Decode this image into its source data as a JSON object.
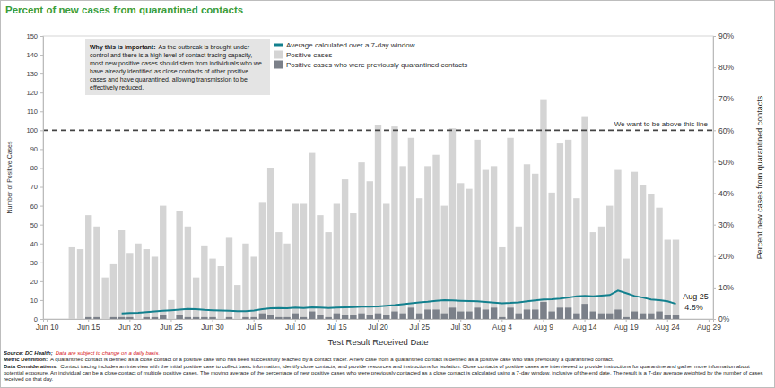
{
  "chart_data": {
    "type": "bar",
    "title": "Percent of new cases from quarantined contacts",
    "x_label": "Test Result Received Date",
    "y_label": "Number of Positive Cases",
    "y2_label": "Percent new cases from quarantined contacts",
    "categories": [
      "Jun 10",
      null,
      null,
      null,
      null,
      "Jun 15",
      null,
      null,
      null,
      null,
      "Jun 20",
      null,
      null,
      null,
      null,
      "Jun 25",
      null,
      null,
      null,
      null,
      "Jun 30",
      null,
      null,
      null,
      null,
      "Jul 5",
      null,
      null,
      null,
      null,
      "Jul 10",
      null,
      null,
      null,
      null,
      "Jul 15",
      null,
      null,
      null,
      null,
      "Jul 20",
      null,
      null,
      null,
      null,
      "Jul 25",
      null,
      null,
      null,
      null,
      "Jul 30",
      null,
      null,
      null,
      null,
      "Aug 4",
      null,
      null,
      null,
      null,
      "Aug 9",
      null,
      null,
      null,
      null,
      "Aug 14",
      null,
      null,
      null,
      null,
      "Aug 19",
      null,
      null,
      null,
      null,
      "Aug 24",
      null,
      null,
      null,
      null,
      "Aug 29"
    ],
    "series": [
      {
        "name": "Average calculated over a 7-day window",
        "type": "line",
        "axis": "y2",
        "color": "#12808e",
        "values": [
          null,
          null,
          null,
          null,
          null,
          null,
          null,
          null,
          null,
          1.8,
          1.9,
          2.0,
          2.2,
          2.4,
          2.6,
          2.8,
          3.0,
          3.2,
          3.1,
          2.9,
          2.8,
          2.7,
          2.6,
          2.5,
          2.5,
          2.7,
          3.1,
          3.4,
          3.5,
          3.4,
          3.6,
          3.5,
          3.7,
          3.6,
          3.5,
          3.6,
          3.7,
          3.8,
          3.9,
          3.9,
          4.0,
          4.2,
          4.4,
          4.7,
          5.0,
          5.3,
          5.5,
          5.8,
          6.0,
          5.9,
          5.8,
          5.7,
          5.6,
          5.4,
          5.2,
          5.0,
          5.1,
          5.3,
          5.6,
          5.9,
          6.2,
          6.3,
          6.5,
          6.8,
          7.2,
          7.3,
          7.2,
          7.4,
          7.6,
          9.0,
          8.2,
          7.3,
          6.8,
          6.2,
          6.0,
          5.6,
          4.8,
          null,
          null,
          null,
          null
        ]
      },
      {
        "name": "Positive cases",
        "type": "bar",
        "color": "#d4d4d4",
        "values": [
          null,
          null,
          null,
          38,
          37,
          55,
          49,
          22,
          29,
          47,
          35,
          40,
          37,
          33,
          60,
          10,
          57,
          49,
          22,
          39,
          32,
          28,
          43,
          18,
          40,
          33,
          62,
          80,
          46,
          40,
          61,
          61,
          88,
          55,
          46,
          61,
          74,
          56,
          83,
          73,
          103,
          61,
          102,
          81,
          96,
          64,
          81,
          87,
          60,
          101,
          72,
          69,
          95,
          79,
          81,
          38,
          96,
          49,
          82,
          77,
          116,
          67,
          93,
          95,
          64,
          107,
          46,
          49,
          60,
          79,
          32,
          78,
          71,
          66,
          59,
          42,
          42,
          null,
          null,
          null,
          null
        ]
      },
      {
        "name": "Positive cases who were previously quarantined contacts",
        "type": "bar",
        "color": "#7b8089",
        "values": [
          null,
          null,
          null,
          0,
          0,
          1,
          1,
          0,
          1,
          1,
          1,
          0,
          1,
          1,
          2,
          0,
          2,
          1,
          1,
          1,
          1,
          0,
          1,
          0,
          1,
          1,
          3,
          2,
          1,
          1,
          3,
          1,
          4,
          2,
          1,
          3,
          2,
          2,
          3,
          2,
          3,
          2,
          4,
          3,
          6,
          3,
          5,
          5,
          3,
          6,
          4,
          4,
          6,
          5,
          6,
          1,
          6,
          3,
          5,
          5,
          9,
          4,
          6,
          6,
          3,
          8,
          4,
          3,
          3,
          5,
          1,
          4,
          3,
          3,
          4,
          2,
          2,
          null,
          null,
          null,
          null
        ]
      }
    ],
    "ylim": [
      0,
      150
    ],
    "yticks": [
      0,
      10,
      20,
      30,
      40,
      50,
      60,
      70,
      80,
      90,
      100,
      110,
      120,
      130,
      140,
      150
    ],
    "y2lim": [
      0,
      90
    ],
    "y2ticks": [
      {
        "value": 0,
        "label": "0%"
      },
      {
        "value": 10,
        "label": "10%"
      },
      {
        "value": 20,
        "label": "20%"
      },
      {
        "value": 30,
        "label": "30%"
      },
      {
        "value": 40,
        "label": "40%"
      },
      {
        "value": 50,
        "label": "50%"
      },
      {
        "value": 60,
        "label": "60%"
      },
      {
        "value": 70,
        "label": "70%"
      },
      {
        "value": 80,
        "label": "80%"
      },
      {
        "value": 90,
        "label": "90%"
      }
    ],
    "grid": false,
    "legend": "top",
    "reference_line": {
      "value": 60,
      "axis": "y2",
      "label": "We want to be above this line",
      "line_style": "dashed"
    },
    "annotations": [
      {
        "text": "Aug 25",
        "label": "4.8%",
        "value": 4.8
      }
    ],
    "note": {
      "heading": "Why this is important:",
      "text": "As the outbreak is brought under control and there is a high level of contact tracing capacity, most new positive cases should stem from individuals who we have already identified as close contacts of other positive cases and have quarantined, allowing transmission to be effectively reduced."
    },
    "footer": {
      "source_label": "Source: DC Health;",
      "source_note": "Data are subject to change on a daily basis.",
      "metric_label": "Metric Definition:",
      "metric_text": "A quarantined contact is defined as a close contact of a positive case who has been successfully reached by a contact tracer. A new case from a quarantined contact is defined as a positive case who was previously a quarantined contact.",
      "considerations_label": "Data Considerations:",
      "considerations_text": "Contact tracing includes an interview with the initial positive case to collect basic information, identify close contacts, and provide resources and instructions for isolation. Close contacts of positive cases are interviewed to provide instructions for quarantine and gather more information about potential exposure. An individual can be a close contact of multiple positive cases. The moving average of the percentage of new positive cases who were previously contacted as a close contact is calculated using a 7-day window, inclusive of the end date. The result is a 7-day average weighted by the number of cases received on that day."
    }
  }
}
